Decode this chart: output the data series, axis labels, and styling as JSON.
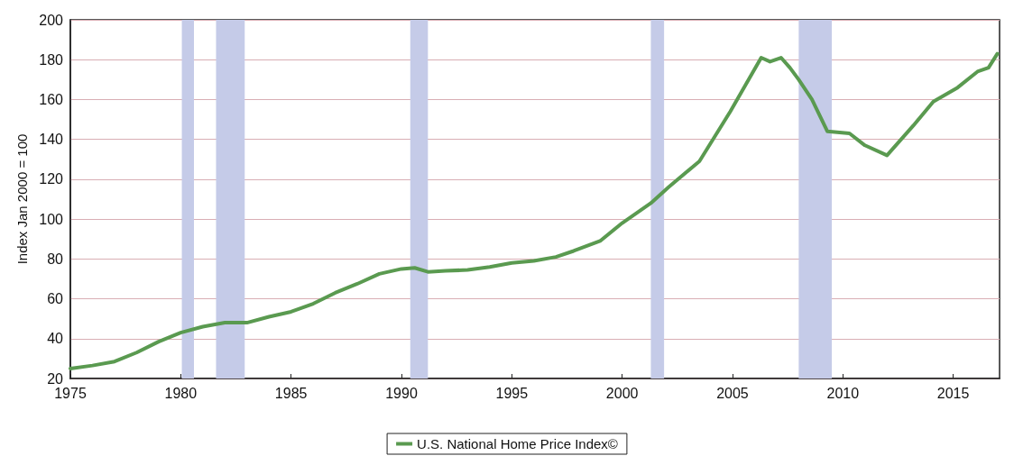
{
  "chart_data": {
    "type": "line",
    "ylabel": "Index Jan 2000 = 100",
    "x": [
      1975,
      1976,
      1977,
      1978,
      1979,
      1980,
      1981,
      1982,
      1983,
      1984,
      1985,
      1986,
      1987,
      1988,
      1989,
      1990,
      1990.6,
      1991.2,
      1992,
      1993,
      1994,
      1995,
      1996,
      1997,
      1997.8,
      1999,
      2000,
      2001.3,
      2002.1,
      2003.5,
      2004.9,
      2006.3,
      2006.7,
      2007.2,
      2007.6,
      2008,
      2008.6,
      2009.3,
      2010.3,
      2011,
      2012,
      2013.2,
      2014.1,
      2015.2,
      2016.1,
      2016.6,
      2017
    ],
    "series": [
      {
        "name": "U.S. National Home Price Index©",
        "color": "#5a9a50",
        "values": [
          25,
          26.5,
          28.5,
          33,
          38.5,
          43,
          46,
          48,
          48,
          51,
          53.5,
          57.5,
          63,
          67.5,
          72.5,
          75,
          75.5,
          73.5,
          74,
          74.5,
          76,
          78,
          79,
          81,
          84,
          89,
          98,
          108,
          116,
          129,
          154,
          181,
          179,
          181,
          176,
          170,
          160,
          144,
          143,
          137,
          132,
          147,
          159,
          166,
          174,
          176,
          183
        ]
      }
    ],
    "xlim": [
      1975,
      2017.1
    ],
    "xticks": [
      1975,
      1980,
      1985,
      1990,
      1995,
      2000,
      2005,
      2010,
      2015
    ],
    "ylim": [
      20,
      200
    ],
    "yticks": [
      20,
      40,
      60,
      80,
      100,
      120,
      140,
      160,
      180,
      200
    ],
    "bands": [
      {
        "axis": "x",
        "from": 1980.05,
        "to": 1980.6,
        "color": "#c5cbe8"
      },
      {
        "axis": "x",
        "from": 1981.6,
        "to": 1982.9,
        "color": "#c5cbe8"
      },
      {
        "axis": "x",
        "from": 1990.4,
        "to": 1991.2,
        "color": "#c5cbe8"
      },
      {
        "axis": "x",
        "from": 2001.3,
        "to": 2001.9,
        "color": "#c5cbe8"
      },
      {
        "axis": "x",
        "from": 2008.0,
        "to": 2009.5,
        "color": "#c5cbe8"
      }
    ],
    "grid": "y",
    "legend": "bottom",
    "marker": "none",
    "line_style": "solid"
  }
}
